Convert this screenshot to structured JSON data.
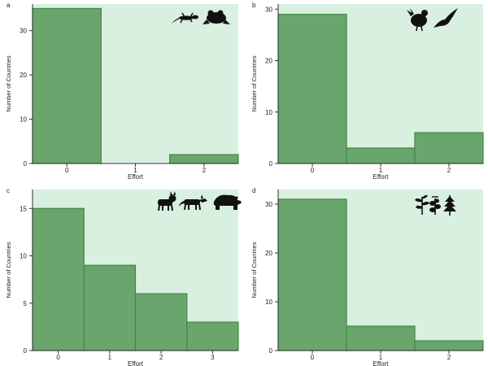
{
  "chart_data": [
    {
      "type": "bar",
      "panel_label": "a",
      "title": "",
      "xlabel": "Effort",
      "ylabel": "Number of Countries",
      "categories": [
        "0",
        "1",
        "2"
      ],
      "values": [
        35,
        0,
        2
      ],
      "yticks": [
        0,
        10,
        20,
        30
      ],
      "ylim": [
        0,
        36
      ],
      "icons": [
        "lizard-icon",
        "frog-icon"
      ]
    },
    {
      "type": "bar",
      "panel_label": "b",
      "title": "",
      "xlabel": "Effort",
      "ylabel": "Number of Countries",
      "categories": [
        "0",
        "1",
        "2"
      ],
      "values": [
        29,
        3,
        6
      ],
      "yticks": [
        0,
        10,
        20,
        30
      ],
      "ylim": [
        0,
        31
      ],
      "icons": [
        "grouse-icon",
        "eagle-icon"
      ]
    },
    {
      "type": "bar",
      "panel_label": "c",
      "title": "",
      "xlabel": "Effort",
      "ylabel": "Number of Countries",
      "categories": [
        "0",
        "1",
        "2",
        "3"
      ],
      "values": [
        15,
        9,
        6,
        3
      ],
      "yticks": [
        0,
        5,
        10,
        15
      ],
      "ylim": [
        0,
        17
      ],
      "icons": [
        "lynx-icon",
        "wolf-icon",
        "bear-icon"
      ]
    },
    {
      "type": "bar",
      "panel_label": "d",
      "title": "",
      "xlabel": "Effort",
      "ylabel": "Number of Countries",
      "categories": [
        "0",
        "1",
        "2"
      ],
      "values": [
        31,
        5,
        2
      ],
      "yticks": [
        0,
        10,
        20,
        30
      ],
      "ylim": [
        0,
        33
      ],
      "icons": [
        "plant-icon",
        "herb-icon",
        "tree-icon"
      ]
    }
  ],
  "colors": {
    "plot_bg": "#d9efdf",
    "bar_fill": "#6aa56e",
    "bar_stroke": "#3d8a3f",
    "axis": "#333333"
  }
}
